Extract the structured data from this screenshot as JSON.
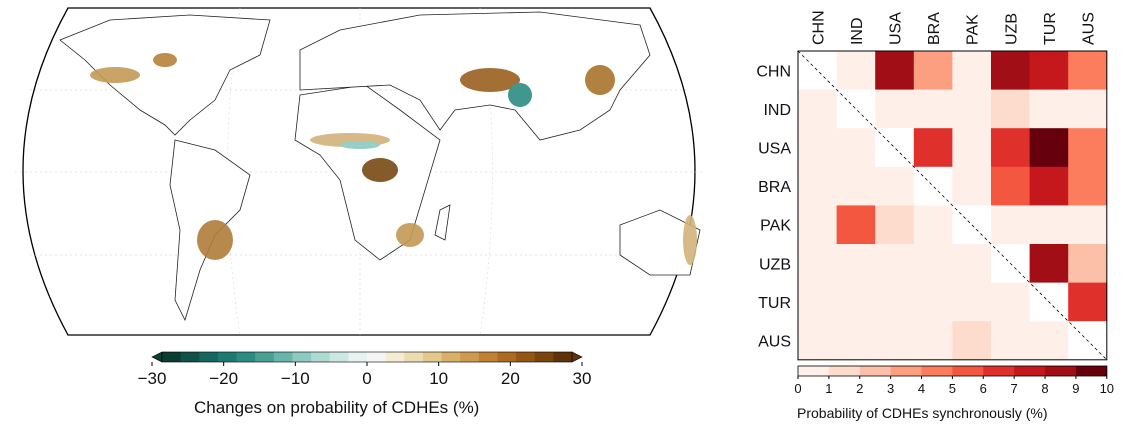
{
  "map_panel": {
    "colorbar": {
      "ticks": [
        "−30",
        "−20",
        "−10",
        "0",
        "10",
        "20",
        "30"
      ],
      "label": "Changes on probability of CDHEs (%)",
      "range": [
        -30,
        30
      ],
      "colors": [
        "#0b3d33",
        "#0f5248",
        "#15665c",
        "#1e7a70",
        "#2d8c82",
        "#48a095",
        "#68b6ab",
        "#8cc9c0",
        "#addbd3",
        "#cbe8e3",
        "#e6f3f0",
        "#f5f5f5",
        "#f6ecd6",
        "#eedcb1",
        "#e4c98d",
        "#d8b06a",
        "#cd9a4f",
        "#bf8134",
        "#ad6a20",
        "#945615",
        "#7a440d",
        "#5f3307"
      ]
    }
  },
  "chart_data": {
    "type": "heatmap",
    "rows": [
      "CHN",
      "IND",
      "USA",
      "BRA",
      "PAK",
      "UZB",
      "TUR",
      "AUS"
    ],
    "columns": [
      "CHN",
      "IND",
      "USA",
      "BRA",
      "PAK",
      "UZB",
      "TUR",
      "AUS"
    ],
    "values": [
      [
        null,
        0.5,
        8.5,
        3.5,
        0.5,
        8.5,
        7.5,
        4.5
      ],
      [
        0.5,
        null,
        0.5,
        0.5,
        0.5,
        1.5,
        0.5,
        0.5
      ],
      [
        0.5,
        0.5,
        null,
        6.5,
        0.5,
        6.5,
        9.5,
        4.5
      ],
      [
        0.5,
        0.5,
        0.5,
        null,
        0.5,
        5.5,
        7.5,
        4.5
      ],
      [
        0.5,
        5.5,
        1.5,
        0.5,
        null,
        0.5,
        0.5,
        0.5
      ],
      [
        0.5,
        0.5,
        0.5,
        0.5,
        0.5,
        null,
        8.5,
        2.5
      ],
      [
        0.5,
        0.5,
        0.5,
        0.5,
        0.5,
        0.5,
        null,
        6.5
      ],
      [
        0.5,
        0.5,
        0.5,
        0.5,
        1.5,
        0.5,
        0.5,
        null
      ]
    ],
    "colorbar": {
      "ticks": [
        "0",
        "1",
        "2",
        "3",
        "4",
        "5",
        "6",
        "7",
        "8",
        "9",
        "10"
      ],
      "range": [
        0,
        10
      ],
      "label": "Probability of CDHEs synchronously (%)",
      "colors": [
        "#fef0e9",
        "#fddcce",
        "#fcbfa7",
        "#fc9f80",
        "#fb7d5d",
        "#f4573f",
        "#e0302b",
        "#c5181c",
        "#a10e16",
        "#67000d"
      ]
    }
  }
}
